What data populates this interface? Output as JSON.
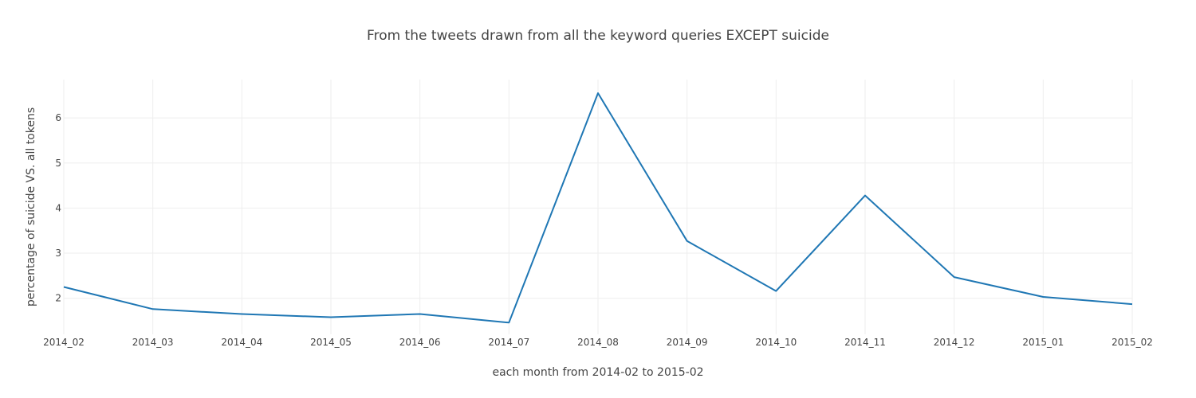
{
  "chart_data": {
    "type": "line",
    "title": "From the tweets drawn from all the keyword queries EXCEPT suicide",
    "xlabel": "each month from 2014-02 to 2015-02",
    "ylabel": "percentage of suicide VS. all tokens",
    "categories": [
      "2014_02",
      "2014_03",
      "2014_04",
      "2014_05",
      "2014_06",
      "2014_07",
      "2014_08",
      "2014_09",
      "2014_10",
      "2014_11",
      "2014_12",
      "2015_01",
      "2015_02"
    ],
    "series": [
      {
        "values": [
          2.25,
          1.76,
          1.65,
          1.58,
          1.65,
          1.46,
          6.55,
          3.27,
          2.16,
          4.28,
          2.47,
          2.03,
          1.87
        ]
      }
    ],
    "yticks": [
      2,
      3,
      4,
      5,
      6
    ],
    "ylim": [
      1.2,
      6.85
    ],
    "grid": true,
    "line_color": "#1f77b4"
  }
}
